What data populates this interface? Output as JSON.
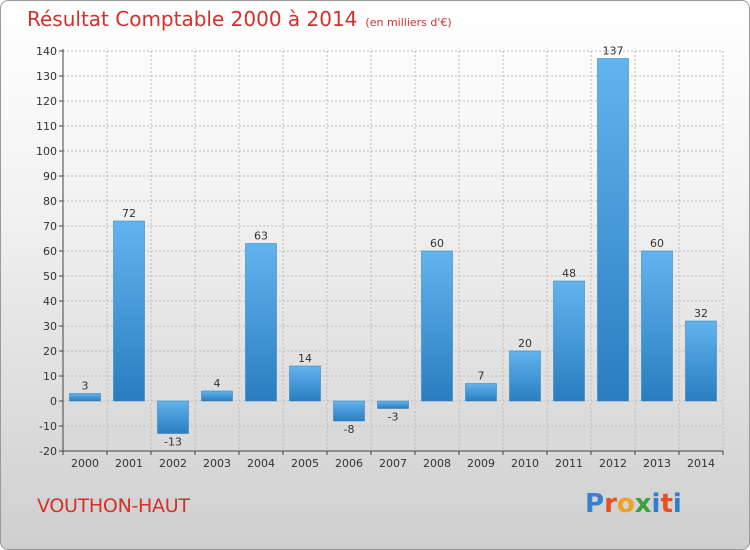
{
  "header": {
    "title": "Résultat Comptable 2000 à 2014",
    "subtitle": "(en milliers d'€)"
  },
  "footer": {
    "location": "VOUTHON-HAUT",
    "logo": "Proxiti"
  },
  "colors": {
    "title": "#d4302b",
    "bar_light": "#5fb0ea",
    "bar_dark": "#2a7fc0",
    "logo_letters": [
      "#3a7fd0",
      "#e8501f",
      "#f0a020",
      "#3aa040",
      "#2a7fd0",
      "#e8501f",
      "#2a7fd0"
    ]
  },
  "chart_data": {
    "type": "bar",
    "title": "Résultat Comptable 2000 à 2014",
    "subtitle": "(en milliers d'€)",
    "categories": [
      "2000",
      "2001",
      "2002",
      "2003",
      "2004",
      "2005",
      "2006",
      "2007",
      "2008",
      "2009",
      "2010",
      "2011",
      "2012",
      "2013",
      "2014"
    ],
    "values": [
      3,
      72,
      -13,
      4,
      63,
      14,
      -8,
      -3,
      60,
      7,
      20,
      48,
      137,
      60,
      32
    ],
    "data_labels": [
      "3",
      "72",
      "-13",
      "4",
      "63",
      "14",
      "-8",
      "-3",
      "60",
      "7",
      "20",
      "48",
      "137",
      "60",
      "32"
    ],
    "yticks": [
      "-20",
      "-10",
      "0",
      "10",
      "20",
      "30",
      "40",
      "50",
      "60",
      "70",
      "80",
      "90",
      "100",
      "110",
      "120",
      "130",
      "140"
    ],
    "ylim": [
      -20,
      140
    ],
    "grid": true,
    "legend": "none"
  }
}
